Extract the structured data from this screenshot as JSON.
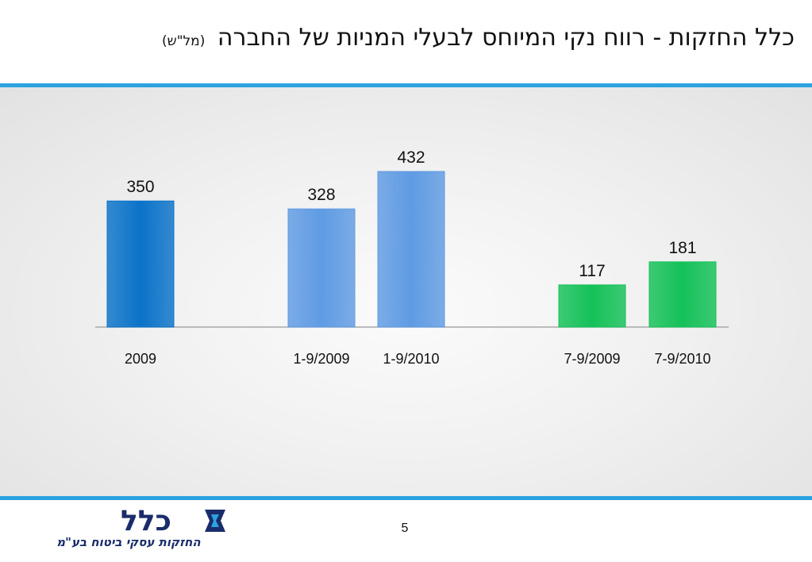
{
  "header": {
    "title": "כלל החזקות - רווח נקי המיוחס לבעלי המניות של החברה",
    "unit": "(מל\"ש)"
  },
  "footer": {
    "page_number": "5",
    "logo": {
      "name": "כלל",
      "tagline": "החזקות עסקי ביטוח בע\"מ"
    }
  },
  "colors": {
    "accent_rule": "#2ba3df",
    "bar_dark_blue": "#0b73c9",
    "bar_light_blue": "#5f9be3",
    "bar_green": "#14c158",
    "logo_navy": "#1a2c6b"
  },
  "chart_data": {
    "type": "bar",
    "title": "",
    "xlabel": "",
    "ylabel": "",
    "ylim": [
      0,
      432
    ],
    "grid": false,
    "legend": "none",
    "categories": [
      "2009",
      "1-9/2009",
      "1-9/2010",
      "7-9/2009",
      "7-9/2010"
    ],
    "values": [
      350,
      328,
      432,
      117,
      181
    ],
    "data_labels": [
      "350",
      "328",
      "432",
      "117",
      "181"
    ],
    "bar_colors": [
      "#0b73c9",
      "#5f9be3",
      "#5f9be3",
      "#14c158",
      "#14c158"
    ]
  }
}
